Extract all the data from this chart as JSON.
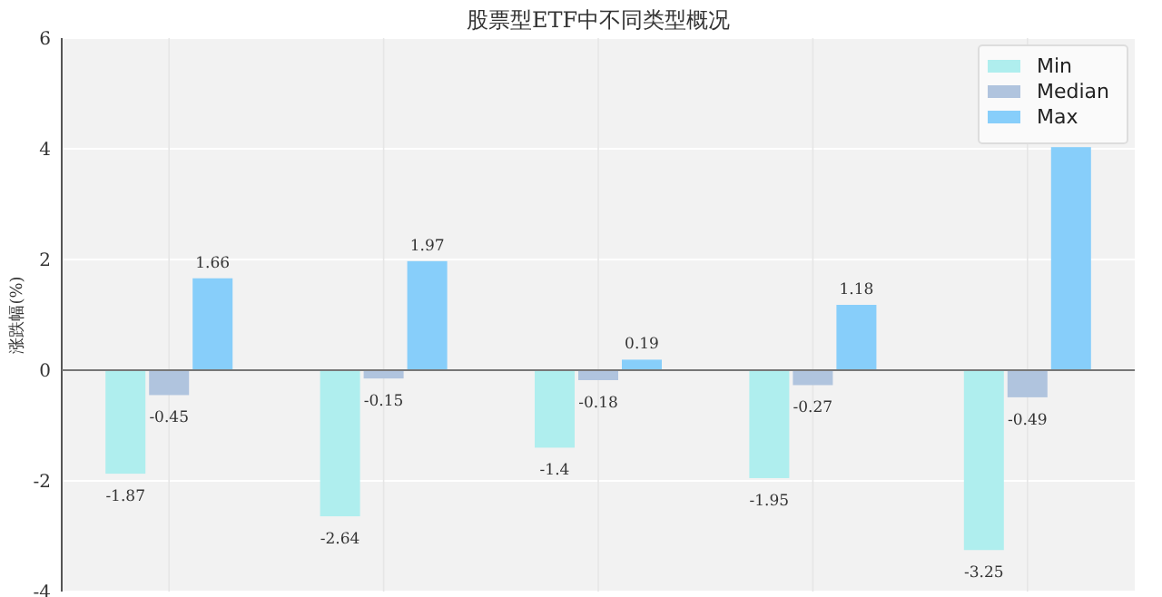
{
  "chart_data": {
    "type": "bar",
    "title": "股票型ETF中不同类型概况",
    "ylabel": "涨跌幅(%)",
    "categories": [
      null,
      null,
      null,
      null,
      null
    ],
    "series": [
      {
        "name": "Min",
        "color": "#afeeee",
        "values": [
          -1.87,
          -2.64,
          -1.4,
          -1.95,
          -3.25
        ],
        "value_labels": [
          "-1.87",
          "-2.64",
          "-1.4",
          "-1.95",
          "-3.25"
        ]
      },
      {
        "name": "Median",
        "color": "#b0c4de",
        "values": [
          -0.45,
          -0.15,
          -0.18,
          -0.27,
          -0.49
        ],
        "value_labels": [
          "-0.45",
          "-0.15",
          "-0.18",
          "-0.27",
          "-0.49"
        ]
      },
      {
        "name": "Max",
        "color": "#87cefa",
        "values": [
          1.66,
          1.97,
          0.19,
          1.18,
          4.03
        ],
        "value_labels": [
          "1.66",
          "1.97",
          "0.19",
          "1.18",
          null
        ]
      }
    ],
    "ylim": [
      -4,
      6
    ],
    "yticks": [
      -4,
      -2,
      0,
      2,
      4,
      6
    ],
    "grid": true,
    "legend": "top right"
  }
}
